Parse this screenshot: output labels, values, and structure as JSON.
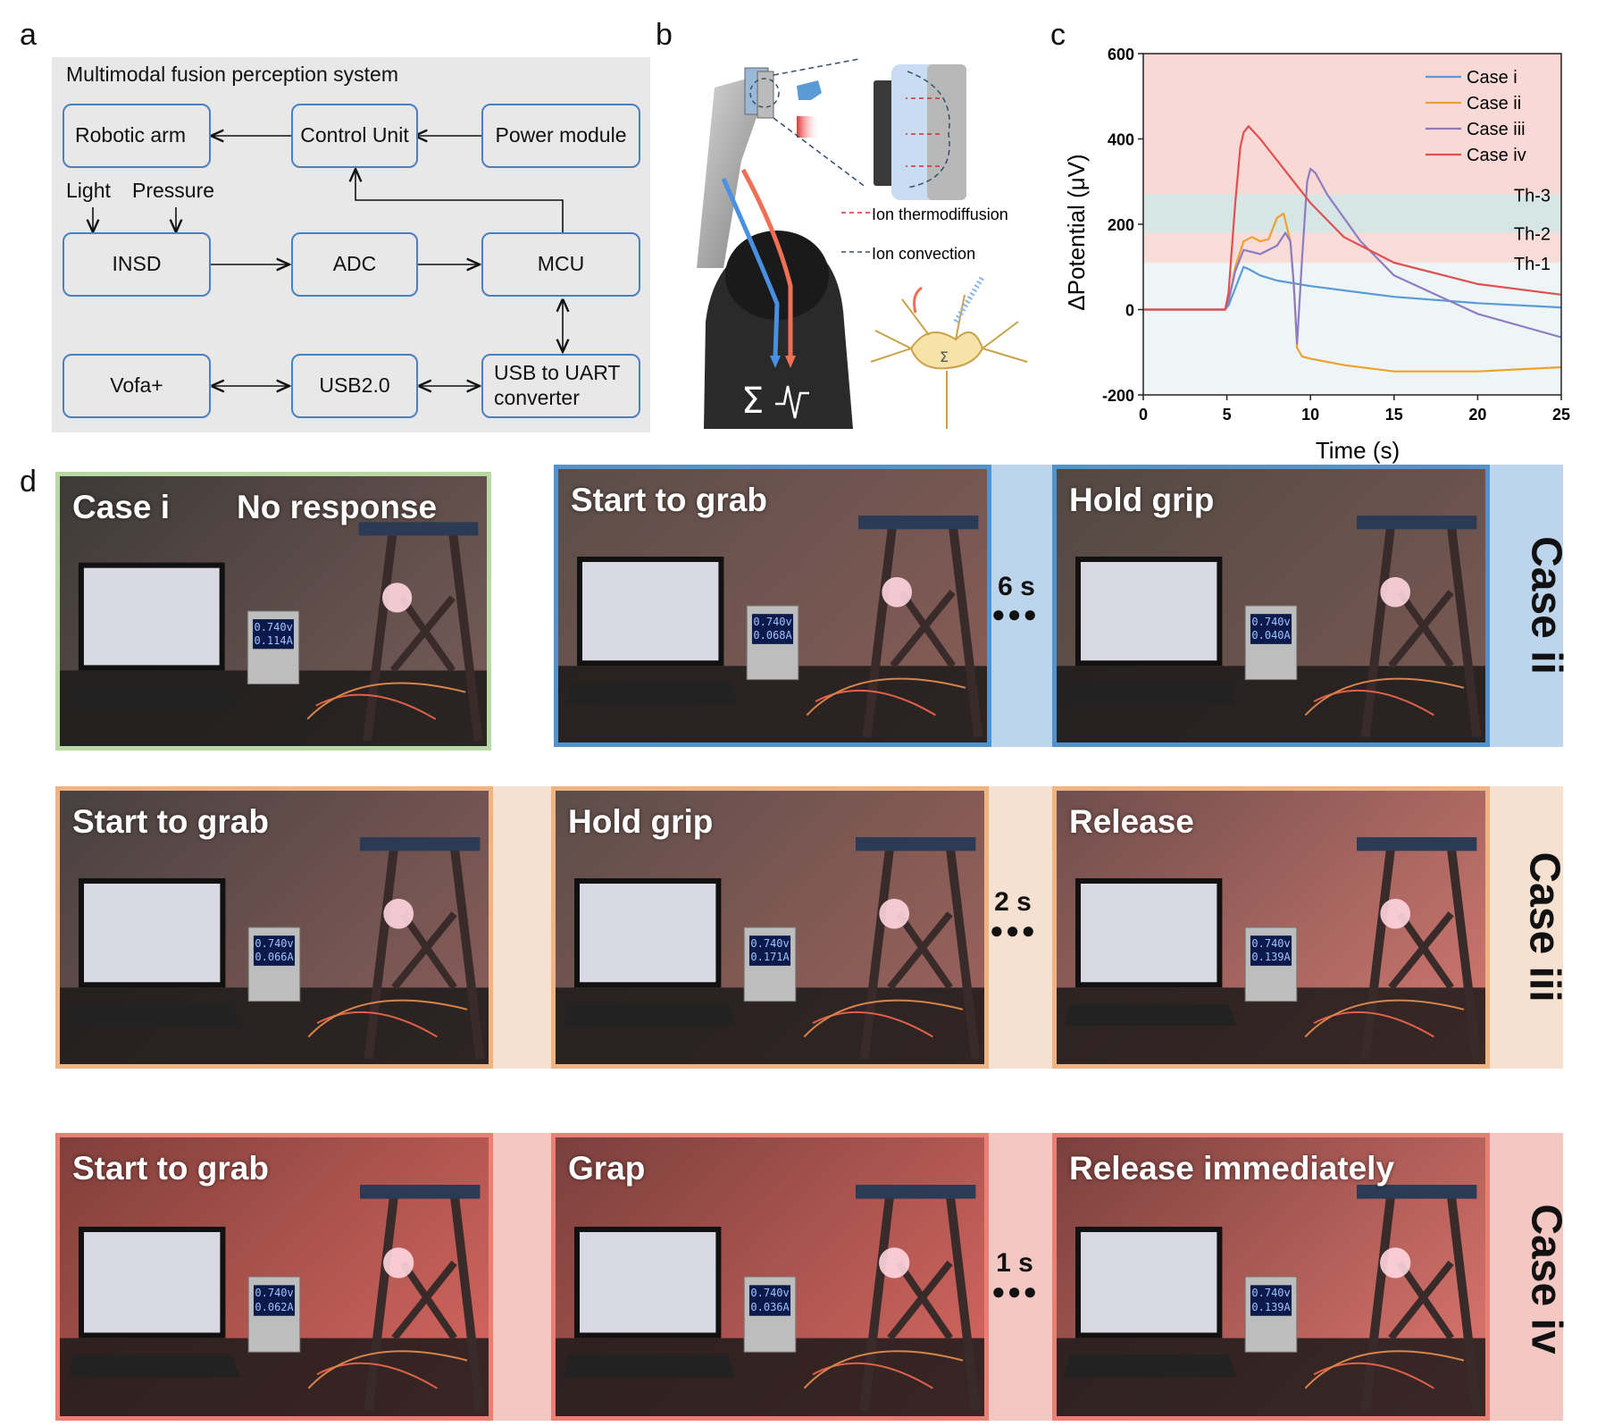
{
  "panel_labels": {
    "a": "a",
    "b": "b",
    "c": "c",
    "d": "d"
  },
  "panel_a": {
    "title": "Multimodal fusion perception system",
    "blocks": {
      "robotic_arm": "Robotic arm",
      "control_unit": "Control Unit",
      "power_module": "Power module",
      "insd": "INSD",
      "adc": "ADC",
      "mcu": "MCU",
      "vofa": "Vofa+",
      "usb2": "USB2.0",
      "usb_uart_line1": "USB to UART",
      "usb_uart_line2": "converter"
    },
    "inputs": {
      "light": "Light",
      "pressure": "Pressure"
    }
  },
  "panel_b": {
    "legend_thermo": "Ion thermodiffusion",
    "legend_convection": "Ion convection",
    "symbol": "Σ"
  },
  "chart_data": {
    "type": "line",
    "xlabel": "Time (s)",
    "ylabel": "ΔPotential (μV)",
    "xlim": [
      0,
      25
    ],
    "ylim": [
      -200,
      600
    ],
    "xticks": [
      0,
      5,
      10,
      15,
      20,
      25
    ],
    "yticks": [
      -200,
      0,
      200,
      400,
      600
    ],
    "thresholds": [
      {
        "name": "Th-3",
        "y": 270
      },
      {
        "name": "Th-2",
        "y": 180
      },
      {
        "name": "Th-1",
        "y": 110
      }
    ],
    "legend_position": "top-right",
    "series": [
      {
        "name": "Case i",
        "color": "#5b9bd5",
        "x": [
          0,
          4.9,
          5.1,
          5.5,
          6.0,
          6.3,
          7,
          8,
          10,
          12,
          15,
          20,
          25
        ],
        "y": [
          0,
          0,
          10,
          50,
          100,
          95,
          80,
          68,
          55,
          45,
          30,
          15,
          5
        ]
      },
      {
        "name": "Case ii",
        "color": "#f0a030",
        "x": [
          0,
          4.9,
          5.1,
          5.5,
          6.0,
          6.5,
          7,
          7.5,
          8.0,
          8.4,
          8.8,
          9.0,
          9.2,
          9.5,
          10,
          12,
          15,
          20,
          25
        ],
        "y": [
          0,
          0,
          20,
          100,
          160,
          170,
          160,
          165,
          215,
          225,
          160,
          60,
          -90,
          -110,
          -115,
          -130,
          -145,
          -145,
          -135
        ]
      },
      {
        "name": "Case iii",
        "color": "#8e7cc3",
        "x": [
          0,
          4.9,
          5.1,
          5.5,
          6.0,
          6.5,
          7,
          8,
          8.5,
          8.8,
          9.0,
          9.2,
          9.5,
          9.8,
          10.0,
          10.3,
          11,
          13,
          15,
          20,
          25
        ],
        "y": [
          0,
          0,
          20,
          90,
          140,
          135,
          130,
          150,
          180,
          160,
          60,
          -80,
          120,
          300,
          330,
          320,
          270,
          160,
          80,
          -10,
          -65
        ]
      },
      {
        "name": "Case iv",
        "color": "#e05050",
        "x": [
          0,
          4.9,
          5.1,
          5.5,
          5.8,
          6.0,
          6.3,
          7,
          8,
          9,
          10,
          12,
          15,
          20,
          25
        ],
        "y": [
          0,
          0,
          40,
          250,
          380,
          415,
          430,
          400,
          350,
          300,
          250,
          170,
          110,
          60,
          35
        ]
      }
    ]
  },
  "panel_d": {
    "rows": [
      {
        "label": "Case ii",
        "duration": "6 s",
        "photos": [
          {
            "caption": "Case i",
            "caption2": "No response",
            "readout_v": "0.740v",
            "readout_a": "0.114A"
          },
          {
            "caption": "Start to grab",
            "readout_v": "0.740v",
            "readout_a": "0.068A"
          },
          {
            "caption": "Hold grip",
            "readout_v": "0.740v",
            "readout_a": "0.040A"
          }
        ]
      },
      {
        "label": "Case iii",
        "duration": "2 s",
        "photos": [
          {
            "caption": "Start to grab",
            "readout_v": "0.740v",
            "readout_a": "0.066A"
          },
          {
            "caption": "Hold grip",
            "readout_v": "0.740v",
            "readout_a": "0.171A"
          },
          {
            "caption": "Release",
            "readout_v": "0.740v",
            "readout_a": "0.139A"
          }
        ]
      },
      {
        "label": "Case iv",
        "duration": "1 s",
        "photos": [
          {
            "caption": "Start to grab",
            "readout_v": "0.740v",
            "readout_a": "0.062A"
          },
          {
            "caption": "Grap",
            "readout_v": "0.740v",
            "readout_a": "0.036A"
          },
          {
            "caption": "Release immediately",
            "readout_v": "0.740v",
            "readout_a": "0.139A"
          }
        ]
      }
    ]
  }
}
